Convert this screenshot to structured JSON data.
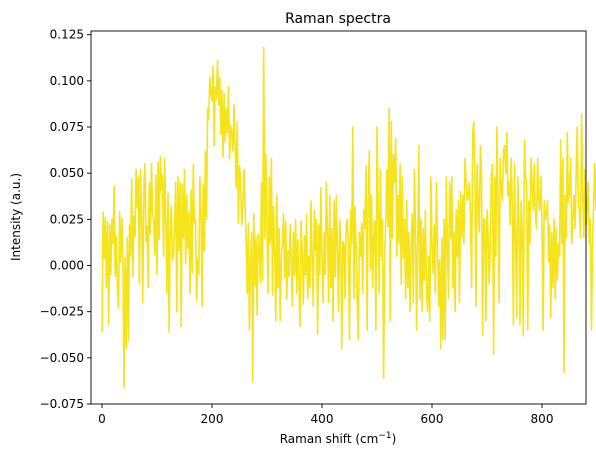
{
  "chart_data": {
    "type": "line",
    "title": "Raman spectra",
    "xlabel": "Raman shift (cm",
    "xlabel_sup": "−1",
    "xlabel_end": ")",
    "ylabel": "Intensity (a.u.)",
    "xlim": [
      -20,
      880
    ],
    "ylim": [
      -0.075,
      0.127
    ],
    "xticks": [
      0,
      200,
      400,
      600,
      800
    ],
    "xtick_labels": [
      "0",
      "200",
      "400",
      "600",
      "800"
    ],
    "yticks": [
      -0.075,
      -0.05,
      -0.025,
      0.0,
      0.025,
      0.05,
      0.075,
      0.1,
      0.125
    ],
    "ytick_labels": [
      "−0.075",
      "−0.050",
      "−0.025",
      "0.000",
      "0.025",
      "0.050",
      "0.075",
      "0.100",
      "0.125"
    ],
    "grid": false,
    "series": [
      {
        "color": "#f5e31c",
        "x_start": 0,
        "x_step": 2,
        "y": [
          -0.036,
          0.029,
          0.004,
          0.026,
          -0.012,
          0.024,
          -0.032,
          0.022,
          -0.005,
          0.025,
          0.012,
          0.043,
          -0.006,
          0.016,
          -0.013,
          -0.023,
          0.029,
          0.002,
          0.026,
          0.004,
          -0.066,
          0.004,
          -0.045,
          0.015,
          -0.041,
          0.022,
          0.005,
          0.047,
          -0.006,
          0.027,
          0.016,
          0.052,
          0.031,
          0.048,
          -0.01,
          0.052,
          0.027,
          -0.02,
          0.039,
          0.055,
          0.013,
          0.021,
          -0.012,
          0.045,
          0.017,
          0.055,
          0.028,
          0.024,
          0.006,
          0.049,
          -0.005,
          0.056,
          0.014,
          0.059,
          0.041,
          0.049,
          0.005,
          0.058,
          0.024,
          -0.015,
          0.039,
          -0.036,
          0.018,
          0.032,
          0.003,
          0.005,
          0.02,
          0.045,
          -0.025,
          0.048,
          0.008,
          0.045,
          -0.033,
          0.044,
          0.015,
          0.052,
          0.001,
          0.038,
          0.009,
          0.029,
          -0.015,
          0.041,
          -0.004,
          0.055,
          0.023,
          0.025,
          -0.019,
          0.003,
          -0.005,
          0.048,
          0.031,
          -0.022,
          0.044,
          0.008,
          0.062,
          0.025,
          0.085,
          0.079,
          0.102,
          0.093,
          0.089,
          0.108,
          0.065,
          0.097,
          0.09,
          0.111,
          0.087,
          0.102,
          0.071,
          0.095,
          0.059,
          0.093,
          0.067,
          0.085,
          0.072,
          0.097,
          0.058,
          0.076,
          0.071,
          0.062,
          0.087,
          0.065,
          0.042,
          0.078,
          0.023,
          0.054,
          0.047,
          0.022,
          0.031,
          0.052,
          0.034,
          0.015,
          -0.015,
          0.023,
          -0.035,
          0.003,
          0.018,
          -0.063,
          0.028,
          -0.011,
          0.015,
          -0.027,
          0.017,
          0.008,
          -0.009,
          0.045,
          -0.008,
          0.118,
          0.015,
          0.06,
          0.019,
          -0.015,
          0.048,
          0.012,
          0.058,
          -0.016,
          0.032,
          0.008,
          -0.03,
          0.038,
          -0.012,
          0.02,
          -0.03,
          0.005,
          0.012,
          0.028,
          -0.007,
          0.024,
          -0.018,
          0.008,
          -0.006,
          0.022,
          0.005,
          -0.022,
          0.018,
          -0.005,
          0.025,
          -0.015,
          0.014,
          -0.008,
          -0.033,
          0.024,
          0.006,
          -0.021,
          0.016,
          -0.005,
          0.028,
          -0.018,
          0.005,
          -0.012,
          0.035,
          0.005,
          -0.022,
          0.03,
          0.008,
          0.025,
          -0.037,
          0.022,
          -0.005,
          0.042,
          0.005,
          -0.02,
          0.018,
          -0.005,
          0.045,
          0.018,
          -0.02,
          0.038,
          -0.012,
          0.02,
          -0.03,
          0.035,
          -0.006,
          0.038,
          0.008,
          -0.025,
          0.025,
          0.012,
          -0.045,
          0.013,
          0.012,
          -0.018,
          0.022,
          0.025,
          0.012,
          -0.04,
          0.03,
          0.012,
          0.075,
          -0.018,
          0.032,
          0.01,
          -0.02,
          -0.04,
          0.018,
          0.005,
          0.023,
          -0.015,
          0.03,
          0.02,
          0.054,
          -0.035,
          0.038,
          0.062,
          -0.002,
          0.038,
          -0.012,
          0.015,
          0.024,
          -0.035,
          0.075,
          0.035,
          -0.015,
          0.052,
          0.005,
          0.025,
          -0.061,
          0.006,
          0.025,
          0.052,
          0.021,
          0.085,
          -0.03,
          0.078,
          0.015,
          0.06,
          0.045,
          0.069,
          0.005,
          0.038,
          0.012,
          0.055,
          -0.01,
          0.048,
          0.004,
          0.025,
          -0.018,
          0.035,
          -0.012,
          0.018,
          -0.025,
          0.009,
          0.028,
          -0.02,
          0.052,
          0.02,
          -0.035,
          0.012,
          0.065,
          -0.018,
          0.025,
          -0.025,
          0.02,
          -0.008,
          0.03,
          -0.015,
          -0.025,
          0.005,
          -0.03,
          0.048,
          0.012,
          -0.004,
          0.022,
          -0.015,
          0.045,
          0.012,
          -0.022,
          0.003,
          -0.045,
          0.015,
          -0.04,
          0.025,
          -0.04,
          0.048,
          0.01,
          -0.018,
          0.045,
          0.015,
          0.048,
          -0.012,
          0.018,
          -0.025,
          0.03,
          0.005,
          0.035,
          -0.02,
          0.04,
          0.015,
          0.038,
          0.012,
          0.058,
          0.045,
          0.035,
          0.038,
          0.045,
          0.028,
          -0.012,
          0.072,
          0.078,
          0.045,
          -0.022,
          0.055,
          0.035,
          0.018,
          0.065,
          0.05,
          -0.038,
          0.025,
          0.025,
          -0.03,
          0.03,
          0.018,
          -0.01,
          0.01,
          0.05,
          0.055,
          -0.048,
          0.048,
          0.005,
          0.075,
          0.035,
          -0.02,
          0.058,
          0.042,
          0.035,
          0.062,
          0.065,
          0.05,
          0.072,
          0.038,
          0.045,
          0.022,
          0.058,
          0.035,
          -0.032,
          0.055,
          0.015,
          -0.028,
          0.048,
          0.025,
          -0.032,
          0.035,
          0.018,
          -0.038,
          0.068,
          0.048,
          0.045,
          -0.035,
          0.035,
          0.012,
          0.058,
          0.045,
          0.03,
          0.055,
          0.028,
          0.02,
          0.058,
          0.035,
          0.03,
          0.048,
          0.02,
          -0.035,
          0.035,
          0.025,
          0.028,
          0.035,
          0.002,
          0.022,
          -0.028,
          0.018,
          -0.012,
          0.025,
          -0.018,
          0.02,
          -0.008,
          0.012,
          0.005,
          0.068,
          0.012,
          0.058,
          -0.058,
          0.038,
          0.015,
          0.072,
          0.034,
          0.04,
          0.058,
          0.012,
          0.025,
          0.038,
          0.02,
          0.048,
          0.075,
          0.034,
          0.03,
          0.015,
          0.082,
          0.04,
          0.015,
          0.052,
          0.022,
          0.03,
          0.045,
          0.012,
          0.025,
          -0.035,
          0.015,
          0.035,
          0.055,
          0.03,
          0.06,
          0.05,
          0.025,
          0.015,
          0.035,
          0.025,
          0.05,
          0.015,
          -0.045,
          0.002,
          -0.02,
          -0.015,
          0.005,
          0.015,
          0.025,
          -0.025,
          0.005,
          0.035,
          0.025,
          -0.015,
          0.018,
          -0.005,
          0.02,
          -0.055
        ]
      }
    ]
  }
}
